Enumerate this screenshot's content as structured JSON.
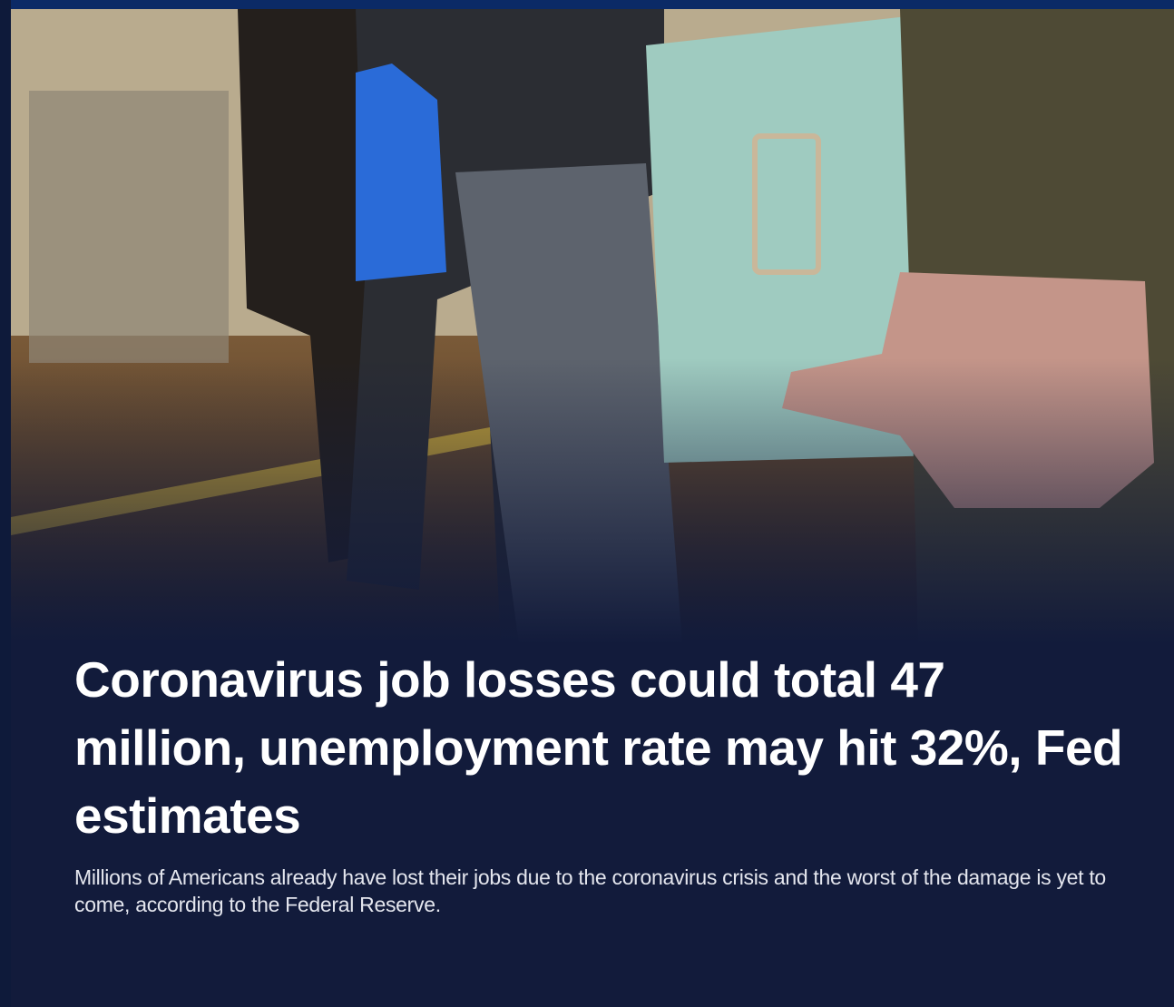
{
  "headline": "Coronavirus job losses could total 47 million, unemployment rate may hit 32%, Fed estimates",
  "summary": "Millions of Americans already have lost their jobs due to the coronavirus crisis and the worst of the damage is yet to come, according to the Federal Reserve."
}
